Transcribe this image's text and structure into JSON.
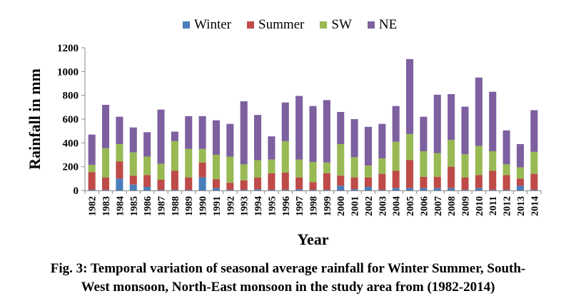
{
  "chart_data": {
    "type": "bar",
    "stacked": true,
    "title": "",
    "xlabel": "Year",
    "ylabel": "Rainfall in mm",
    "ylim": [
      0,
      1200
    ],
    "yticks": [
      0,
      200,
      400,
      600,
      800,
      1000,
      1200
    ],
    "grid": false,
    "legend_placement": "top",
    "categories": [
      "1982",
      "1983",
      "1984",
      "1985",
      "1986",
      "1987",
      "1988",
      "1989",
      "1990",
      "1991",
      "1992",
      "1993",
      "1994",
      "1995",
      "1996",
      "1997",
      "1998",
      "1999",
      "2000",
      "2001",
      "2002",
      "2003",
      "2004",
      "2005",
      "2006",
      "2007",
      "2008",
      "2009",
      "2010",
      "2011",
      "2012",
      "2013",
      "2014"
    ],
    "series": [
      {
        "name": "Winter",
        "color": "#4a7ebb",
        "values": [
          5,
          5,
          100,
          50,
          30,
          5,
          5,
          5,
          110,
          20,
          5,
          5,
          10,
          5,
          5,
          10,
          5,
          5,
          40,
          10,
          30,
          5,
          20,
          20,
          20,
          20,
          20,
          5,
          20,
          5,
          5,
          40,
          5
        ]
      },
      {
        "name": "Summer",
        "color": "#be4b48",
        "values": [
          150,
          105,
          145,
          75,
          100,
          85,
          160,
          105,
          125,
          75,
          60,
          80,
          100,
          140,
          145,
          100,
          65,
          140,
          85,
          100,
          80,
          135,
          145,
          235,
          95,
          95,
          180,
          105,
          110,
          160,
          125,
          60,
          135
        ]
      },
      {
        "name": "SW",
        "color": "#98b954",
        "values": [
          60,
          245,
          145,
          195,
          155,
          135,
          250,
          240,
          115,
          205,
          220,
          135,
          145,
          115,
          265,
          150,
          170,
          90,
          265,
          170,
          100,
          130,
          245,
          220,
          215,
          200,
          225,
          195,
          245,
          165,
          90,
          95,
          185
        ]
      },
      {
        "name": "NE",
        "color": "#7d60a0",
        "values": [
          255,
          365,
          230,
          210,
          205,
          455,
          80,
          275,
          275,
          290,
          275,
          530,
          380,
          195,
          325,
          535,
          470,
          525,
          270,
          320,
          325,
          290,
          300,
          630,
          290,
          490,
          385,
          400,
          575,
          500,
          285,
          195,
          350
        ]
      }
    ]
  },
  "caption": {
    "line1": "Fig. 3: Temporal variation of seasonal average rainfall for Winter Summer, South-",
    "line2": "West monsoon, North-East monsoon in the study area from (1982-2014)"
  }
}
